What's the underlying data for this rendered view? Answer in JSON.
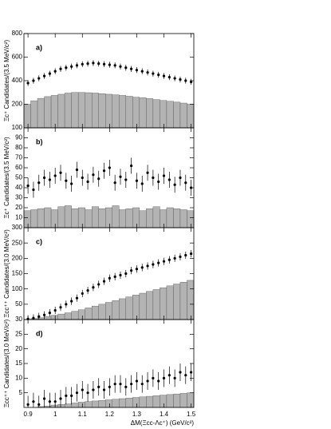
{
  "chart_data": [
    {
      "type": "scatter",
      "label": "a)",
      "ylabel": "Ξc⁺ Candidates/(3.5 MeV/c²)",
      "x": [
        0.9,
        0.92,
        0.94,
        0.96,
        0.98,
        1.0,
        1.02,
        1.04,
        1.06,
        1.08,
        1.1,
        1.12,
        1.14,
        1.16,
        1.18,
        1.2,
        1.22,
        1.24,
        1.26,
        1.28,
        1.3,
        1.32,
        1.34,
        1.36,
        1.38,
        1.4,
        1.42,
        1.44,
        1.46,
        1.48,
        1.5
      ],
      "values": [
        380,
        400,
        420,
        440,
        460,
        480,
        500,
        510,
        520,
        530,
        540,
        545,
        550,
        545,
        540,
        535,
        530,
        520,
        510,
        500,
        490,
        480,
        470,
        460,
        450,
        440,
        430,
        420,
        410,
        400,
        390
      ],
      "errors": [
        25,
        25,
        25,
        25,
        25,
        25,
        25,
        25,
        25,
        25,
        25,
        25,
        25,
        25,
        25,
        25,
        25,
        25,
        25,
        25,
        25,
        25,
        25,
        25,
        25,
        25,
        25,
        25,
        25,
        25,
        25
      ],
      "background": {
        "bins": [
          0.885,
          0.91,
          0.935,
          0.96,
          0.985,
          1.01,
          1.035,
          1.06,
          1.085,
          1.11,
          1.135,
          1.16,
          1.185,
          1.21,
          1.235,
          1.26,
          1.285,
          1.31,
          1.335,
          1.36,
          1.385,
          1.41,
          1.435,
          1.46,
          1.485,
          1.51
        ],
        "counts": [
          200,
          230,
          250,
          265,
          275,
          285,
          295,
          300,
          300,
          298,
          295,
          290,
          285,
          280,
          275,
          268,
          260,
          255,
          248,
          240,
          232,
          225,
          218,
          210,
          200
        ],
        "color": "#b3b3b3"
      },
      "xlim": [
        0.885,
        1.51
      ],
      "xticks": [
        0.9,
        1.0,
        1.1,
        1.2,
        1.3,
        1.4,
        1.5
      ],
      "ylim": [
        0,
        800
      ],
      "yticks": [
        200,
        400,
        600,
        800
      ]
    },
    {
      "type": "scatter",
      "label": "b)",
      "ylabel": "Ξc⁺ Candidates/(3.5 MeV/c²)",
      "x": [
        0.9,
        0.92,
        0.94,
        0.96,
        0.98,
        1.0,
        1.02,
        1.04,
        1.06,
        1.08,
        1.1,
        1.12,
        1.14,
        1.16,
        1.18,
        1.2,
        1.22,
        1.24,
        1.26,
        1.28,
        1.3,
        1.32,
        1.34,
        1.36,
        1.38,
        1.4,
        1.42,
        1.44,
        1.46,
        1.48,
        1.5
      ],
      "values": [
        42,
        38,
        45,
        50,
        48,
        52,
        55,
        47,
        44,
        58,
        50,
        46,
        53,
        49,
        57,
        60,
        45,
        51,
        48,
        62,
        47,
        44,
        55,
        50,
        46,
        52,
        48,
        43,
        50,
        45,
        40
      ],
      "errors": [
        8,
        8,
        8,
        8,
        8,
        8,
        8,
        8,
        8,
        8,
        8,
        8,
        8,
        8,
        8,
        8,
        8,
        8,
        8,
        8,
        8,
        8,
        8,
        8,
        8,
        8,
        8,
        8,
        8,
        8,
        8
      ],
      "background": {
        "bins": [
          0.885,
          0.91,
          0.935,
          0.96,
          0.985,
          1.01,
          1.035,
          1.06,
          1.085,
          1.11,
          1.135,
          1.16,
          1.185,
          1.21,
          1.235,
          1.26,
          1.285,
          1.31,
          1.335,
          1.36,
          1.385,
          1.41,
          1.435,
          1.46,
          1.485,
          1.51
        ],
        "counts": [
          17,
          18,
          19,
          20,
          18,
          21,
          22,
          19,
          20,
          18,
          21,
          19,
          20,
          22,
          18,
          19,
          20,
          17,
          19,
          21,
          18,
          20,
          19,
          18,
          17
        ],
        "color": "#b3b3b3"
      },
      "xlim": [
        0.885,
        1.51
      ],
      "xticks": [
        0.9,
        1.0,
        1.1,
        1.2,
        1.3,
        1.4,
        1.5
      ],
      "ylim": [
        0,
        100
      ],
      "yticks": [
        10,
        20,
        30,
        40,
        50,
        60,
        70,
        80,
        90,
        100
      ]
    },
    {
      "type": "scatter",
      "label": "c)",
      "ylabel": "Ξcc⁺⁺ Candidates/(3.0 MeV/c²)",
      "x": [
        0.9,
        0.92,
        0.94,
        0.96,
        0.98,
        1.0,
        1.02,
        1.04,
        1.06,
        1.08,
        1.1,
        1.12,
        1.14,
        1.16,
        1.18,
        1.2,
        1.22,
        1.24,
        1.26,
        1.28,
        1.3,
        1.32,
        1.34,
        1.36,
        1.38,
        1.4,
        1.42,
        1.44,
        1.46,
        1.48,
        1.5
      ],
      "values": [
        2,
        5,
        10,
        15,
        22,
        30,
        40,
        50,
        60,
        70,
        85,
        95,
        105,
        115,
        125,
        135,
        140,
        145,
        150,
        160,
        165,
        170,
        175,
        180,
        185,
        190,
        195,
        200,
        205,
        210,
        215
      ],
      "errors": [
        12,
        12,
        12,
        12,
        12,
        12,
        12,
        12,
        12,
        12,
        12,
        12,
        12,
        12,
        12,
        12,
        12,
        12,
        12,
        12,
        12,
        12,
        12,
        12,
        12,
        12,
        12,
        12,
        12,
        12,
        12
      ],
      "background": {
        "bins": [
          0.885,
          0.91,
          0.935,
          0.96,
          0.985,
          1.01,
          1.035,
          1.06,
          1.085,
          1.11,
          1.135,
          1.16,
          1.185,
          1.21,
          1.235,
          1.26,
          1.285,
          1.31,
          1.335,
          1.36,
          1.385,
          1.41,
          1.435,
          1.46,
          1.485,
          1.51
        ],
        "counts": [
          0,
          3,
          6,
          10,
          14,
          18,
          22,
          27,
          32,
          38,
          44,
          50,
          56,
          62,
          68,
          74,
          80,
          86,
          92,
          98,
          104,
          110,
          116,
          122,
          128
        ],
        "color": "#b3b3b3"
      },
      "xlim": [
        0.885,
        1.51
      ],
      "xticks": [
        0.9,
        1.0,
        1.1,
        1.2,
        1.3,
        1.4,
        1.5
      ],
      "ylim": [
        0,
        300
      ],
      "yticks": [
        50,
        100,
        150,
        200,
        250,
        300
      ]
    },
    {
      "type": "scatter",
      "label": "d)",
      "ylabel": "Ξcc⁺⁺ Candidates/(3.0 MeV/c²)",
      "xlabel": "ΔM(Ξcc-Λc⁺)  (GeV/c²)",
      "x": [
        0.9,
        0.92,
        0.94,
        0.96,
        0.98,
        1.0,
        1.02,
        1.04,
        1.06,
        1.08,
        1.1,
        1.12,
        1.14,
        1.16,
        1.18,
        1.2,
        1.22,
        1.24,
        1.26,
        1.28,
        1.3,
        1.32,
        1.34,
        1.36,
        1.38,
        1.4,
        1.42,
        1.44,
        1.46,
        1.48,
        1.5
      ],
      "values": [
        1,
        2,
        1,
        3,
        2,
        2,
        3,
        4,
        4,
        5,
        6,
        5,
        6,
        7,
        6,
        7,
        8,
        8,
        7,
        8,
        9,
        8,
        9,
        10,
        9,
        10,
        11,
        10,
        12,
        11,
        12
      ],
      "errors": [
        3,
        3,
        3,
        3,
        3,
        3,
        3,
        3,
        3,
        3,
        3,
        3,
        3,
        3,
        3,
        3,
        3,
        3,
        3,
        3,
        3,
        3,
        3,
        3,
        3,
        3,
        3,
        3,
        3,
        3,
        3
      ],
      "background": {
        "bins": [
          0.885,
          0.91,
          0.935,
          0.96,
          0.985,
          1.01,
          1.035,
          1.06,
          1.085,
          1.11,
          1.135,
          1.16,
          1.185,
          1.21,
          1.235,
          1.26,
          1.285,
          1.31,
          1.335,
          1.36,
          1.385,
          1.41,
          1.435,
          1.46,
          1.485,
          1.51
        ],
        "counts": [
          0,
          0,
          0.3,
          0.5,
          0.8,
          1,
          1.2,
          1.5,
          1.8,
          2,
          2.2,
          2.4,
          2.6,
          2.8,
          3,
          3.2,
          3.4,
          3.6,
          3.8,
          4,
          4.2,
          4.4,
          4.6,
          4.8,
          5
        ],
        "color": "#b3b3b3"
      },
      "xlim": [
        0.885,
        1.51
      ],
      "xticks": [
        0.9,
        1.0,
        1.1,
        1.2,
        1.3,
        1.4,
        1.5
      ],
      "ylim": [
        0,
        30
      ],
      "yticks": [
        5,
        10,
        15,
        20,
        25,
        30
      ]
    }
  ]
}
